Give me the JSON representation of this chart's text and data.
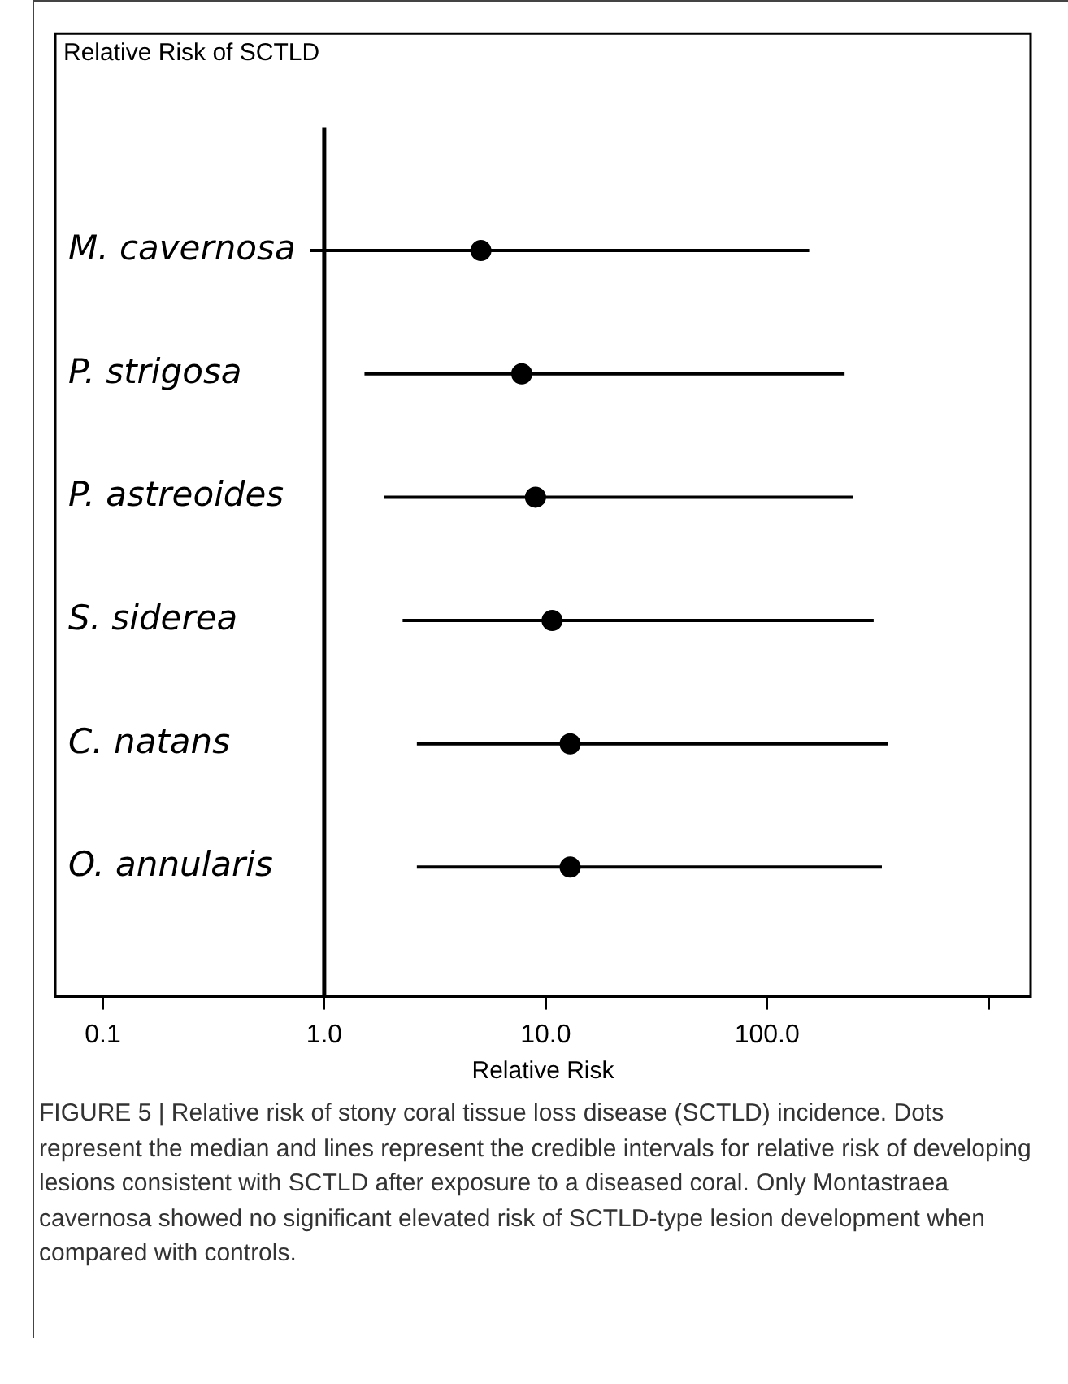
{
  "chart_data": {
    "type": "scatter",
    "orientation": "horizontal",
    "title": "Relative Risk of SCTLD",
    "xlabel": "Relative Risk",
    "categories": [
      "M. cavernosa",
      "P. strigosa",
      "P. astreoides",
      "S. siderea",
      "C. natans",
      "O. annularis"
    ],
    "values": [
      5.1,
      7.8,
      9.0,
      10.7,
      12.9,
      12.9
    ],
    "errors": [
      [
        0.86,
        155
      ],
      [
        1.52,
        224
      ],
      [
        1.87,
        244
      ],
      [
        2.26,
        303
      ],
      [
        2.62,
        352
      ],
      [
        2.62,
        330
      ]
    ],
    "color": "#000000",
    "marker": "circle",
    "log": "x",
    "xlim": [
      0.061,
      1550
    ],
    "xticks": [
      {
        "value": 0.1,
        "label": "0.1"
      },
      {
        "value": 1,
        "label": "1.0"
      },
      {
        "value": 10,
        "label": "10.0"
      },
      {
        "value": 100,
        "label": "100.0"
      },
      {
        "value": 1000,
        "label": null
      }
    ],
    "ref_lines": [
      {
        "axis": "x",
        "value": 1
      }
    ],
    "grid": false,
    "legend": false,
    "annotations": [
      "FIGURE 5 | Relative risk of stony coral tissue loss disease (SCTLD) incidence. Dots represent the median and lines represent the credible intervals for relative risk of developing lesions consistent with SCTLD after exposure to a diseased coral. Only Montastraea cavernosa showed no significant elevated risk of SCTLD-type lesion development when compared with controls."
    ]
  }
}
